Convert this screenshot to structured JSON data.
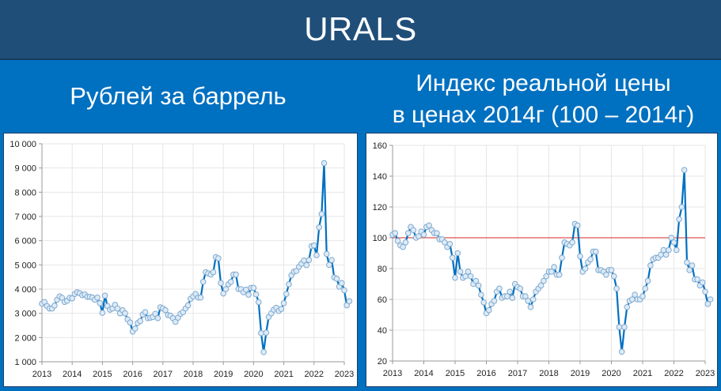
{
  "header": {
    "title": "URALS"
  },
  "subtitles": {
    "left": "Рублей за баррель",
    "right_line1": "Индекс реальной цены",
    "right_line2": "в ценах 2014г (100 – 2014г)"
  },
  "colors": {
    "header_bg": "#1F4E79",
    "page_bg": "#0070C0",
    "series": "#0070C0",
    "marker_fill": "#DDEBF7",
    "reference_line": "#D9534F"
  },
  "chart_data": [
    {
      "type": "line",
      "title": "Рублей за баррель",
      "xlabel": "",
      "ylabel": "",
      "ylim": [
        1000,
        10000
      ],
      "yticks": [
        "1 000",
        "2 000",
        "3 000",
        "4 000",
        "5 000",
        "6 000",
        "7 000",
        "8 000",
        "9 000",
        "10 000"
      ],
      "xticks": [
        "2013",
        "2014",
        "2015",
        "2016",
        "2017",
        "2018",
        "2019",
        "2020",
        "2021",
        "2022",
        "2023"
      ],
      "grid": true,
      "x_start": "2013-01",
      "frequency": "monthly",
      "values": [
        3400,
        3470,
        3300,
        3200,
        3200,
        3320,
        3560,
        3700,
        3640,
        3470,
        3520,
        3640,
        3620,
        3800,
        3870,
        3830,
        3750,
        3780,
        3680,
        3680,
        3650,
        3560,
        3650,
        3420,
        3020,
        3730,
        3300,
        3150,
        3200,
        3350,
        3200,
        3000,
        3130,
        3000,
        2750,
        2620,
        2250,
        2370,
        2600,
        2680,
        2950,
        3050,
        2800,
        2820,
        2850,
        2980,
        2800,
        3250,
        3200,
        3130,
        2930,
        2900,
        2800,
        2650,
        2820,
        2980,
        3050,
        3200,
        3330,
        3600,
        3700,
        3800,
        3650,
        3650,
        4300,
        4700,
        4650,
        4600,
        4700,
        5320,
        5270,
        4250,
        3820,
        4000,
        4200,
        4300,
        4600,
        4600,
        4000,
        4000,
        3870,
        3980,
        3770,
        4050,
        4050,
        3780,
        3460,
        2180,
        1400,
        2200,
        2850,
        3000,
        3150,
        3230,
        3100,
        3180,
        3420,
        3800,
        4200,
        4570,
        4720,
        4750,
        4920,
        5050,
        5180,
        4990,
        5200,
        5770,
        5800,
        5400,
        6550,
        7100,
        9200,
        5450,
        5000,
        5200,
        4480,
        4430,
        4100,
        4250,
        3950,
        3330,
        3500
      ]
    },
    {
      "type": "line",
      "title": "Индекс реальной цены в ценах 2014г (100 – 2014г)",
      "xlabel": "",
      "ylabel": "",
      "ylim": [
        20,
        160
      ],
      "yticks": [
        "20",
        "40",
        "60",
        "80",
        "100",
        "120",
        "140",
        "160"
      ],
      "xticks": [
        "2013",
        "2014",
        "2015",
        "2016",
        "2017",
        "2018",
        "2019",
        "2020",
        "2021",
        "2022",
        "2023"
      ],
      "grid": true,
      "reference_line": 100,
      "x_start": "2013-01",
      "frequency": "monthly",
      "values": [
        102,
        103,
        98,
        95,
        94,
        97,
        103,
        107,
        105,
        100,
        101,
        104,
        102,
        107,
        108,
        105,
        103,
        103,
        99,
        99,
        97,
        94,
        96,
        87,
        74,
        90,
        78,
        74,
        75,
        78,
        75,
        70,
        72,
        69,
        63,
        58,
        51,
        53,
        57,
        59,
        65,
        67,
        61,
        62,
        62,
        65,
        61,
        70,
        68,
        67,
        62,
        62,
        59,
        55,
        60,
        65,
        67,
        69,
        72,
        75,
        78,
        78,
        81,
        76,
        76,
        87,
        97,
        96,
        95,
        97,
        109,
        108,
        88,
        78,
        80,
        84,
        86,
        91,
        91,
        79,
        79,
        78,
        76,
        79,
        79,
        75,
        67,
        42,
        26,
        42,
        55,
        59,
        60,
        63,
        60,
        60,
        62,
        67,
        72,
        82,
        86,
        87,
        87,
        89,
        92,
        89,
        92,
        100,
        97,
        92,
        112,
        120,
        144,
        84,
        79,
        82,
        73,
        73,
        69,
        71,
        65,
        57,
        60
      ]
    }
  ]
}
